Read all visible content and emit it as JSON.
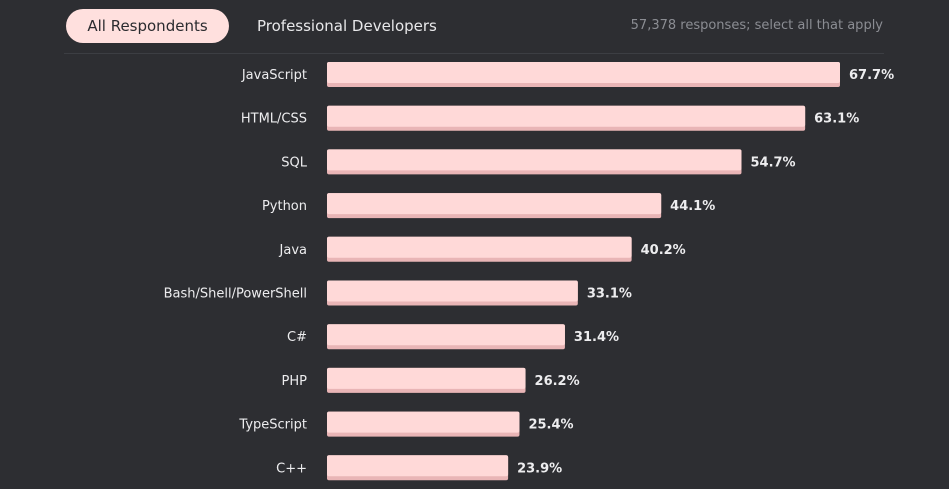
{
  "header": {
    "tabs": [
      {
        "label": "All Respondents",
        "active": true
      },
      {
        "label": "Professional Developers",
        "active": false
      }
    ],
    "responses_note": "57,378 responses; select all that apply"
  },
  "colors": {
    "background": "#2d2e32",
    "bar": "#ffd9d8",
    "bar_shadow": "#e9b5b6",
    "label": "#ededef",
    "active_tab": "#ffe0de"
  },
  "chart_data": {
    "type": "bar",
    "orientation": "horizontal",
    "categories": [
      "JavaScript",
      "HTML/CSS",
      "SQL",
      "Python",
      "Java",
      "Bash/Shell/PowerShell",
      "C#",
      "PHP",
      "TypeScript",
      "C++"
    ],
    "values": [
      67.7,
      63.1,
      54.7,
      44.1,
      40.2,
      33.1,
      31.4,
      26.2,
      25.4,
      23.9
    ],
    "value_labels": [
      "67.7%",
      "63.1%",
      "54.7%",
      "44.1%",
      "40.2%",
      "33.1%",
      "31.4%",
      "26.2%",
      "25.4%",
      "23.9%"
    ],
    "unit": "%",
    "xlim": [
      0,
      67.7
    ],
    "grid": false,
    "legend": "none"
  }
}
